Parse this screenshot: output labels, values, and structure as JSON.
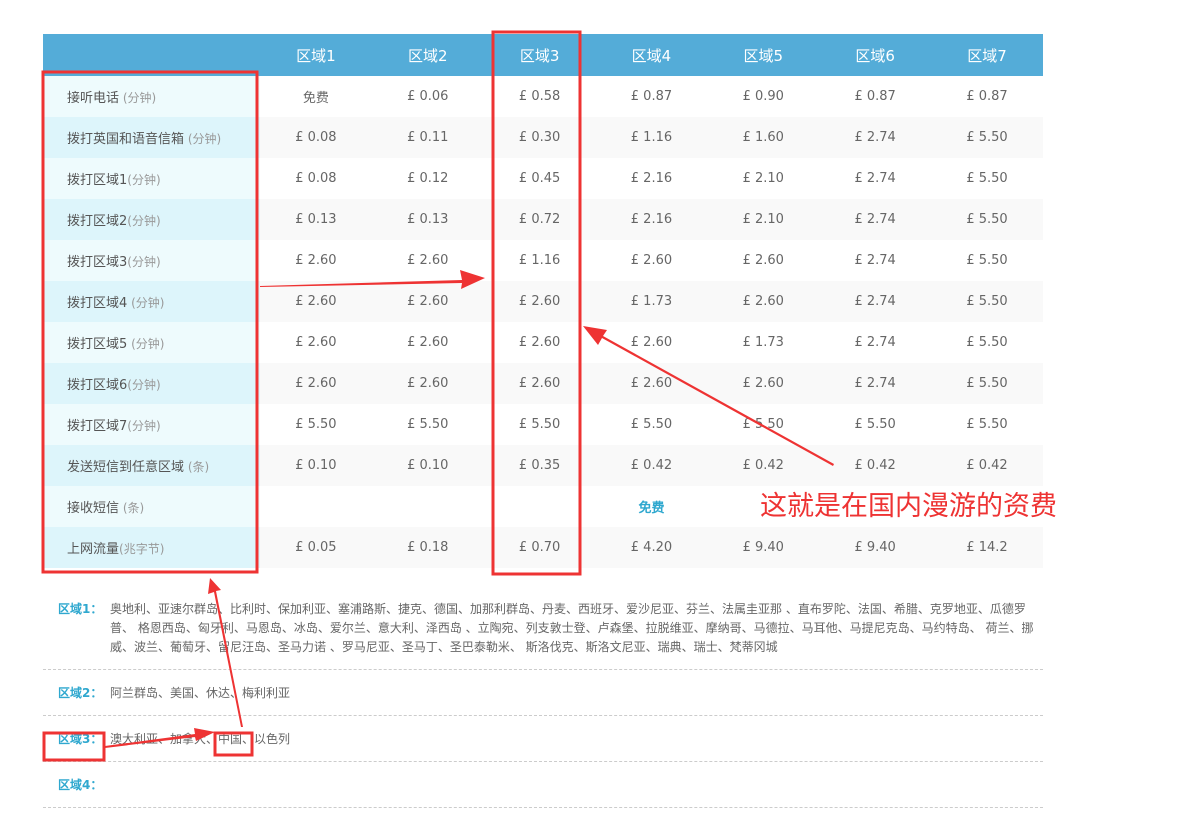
{
  "table": {
    "headers": [
      "区域1",
      "区域2",
      "区域3",
      "区域4",
      "区域5",
      "区域6",
      "区域7"
    ],
    "rows": [
      {
        "label": "接听电话",
        "unit": " (分钟)",
        "values": [
          "免费",
          "£ 0.06",
          "£ 0.58",
          "£ 0.87",
          "£ 0.90",
          "£ 0.87",
          "£ 0.87"
        ]
      },
      {
        "label": "拨打英国和语音信箱",
        "unit": " (分钟)",
        "values": [
          "£ 0.08",
          "£ 0.11",
          "£ 0.30",
          "£ 1.16",
          "£ 1.60",
          "£ 2.74",
          "£ 5.50"
        ]
      },
      {
        "label": "拨打区域1",
        "unit": "(分钟)",
        "values": [
          "£ 0.08",
          "£ 0.12",
          "£ 0.45",
          "£ 2.16",
          "£ 2.10",
          "£ 2.74",
          "£ 5.50"
        ]
      },
      {
        "label": "拨打区域2",
        "unit": "(分钟)",
        "values": [
          "£ 0.13",
          "£ 0.13",
          "£ 0.72",
          "£ 2.16",
          "£ 2.10",
          "£ 2.74",
          "£ 5.50"
        ]
      },
      {
        "label": "拨打区域3",
        "unit": "(分钟)",
        "values": [
          "£ 2.60",
          "£ 2.60",
          "£ 1.16",
          "£ 2.60",
          "£ 2.60",
          "£ 2.74",
          "£ 5.50"
        ]
      },
      {
        "label": "拨打区域4",
        "unit": " (分钟)",
        "values": [
          "£ 2.60",
          "£ 2.60",
          "£ 2.60",
          "£ 1.73",
          "£ 2.60",
          "£ 2.74",
          "£ 5.50"
        ]
      },
      {
        "label": "拨打区域5",
        "unit": " (分钟)",
        "values": [
          "£ 2.60",
          "£ 2.60",
          "£ 2.60",
          "£ 2.60",
          "£ 1.73",
          "£ 2.74",
          "£ 5.50"
        ]
      },
      {
        "label": "拨打区域6",
        "unit": "(分钟)",
        "values": [
          "£ 2.60",
          "£ 2.60",
          "£ 2.60",
          "£ 2.60",
          "£ 2.60",
          "£ 2.74",
          "£ 5.50"
        ]
      },
      {
        "label": "拨打区域7",
        "unit": "(分钟)",
        "values": [
          "£ 5.50",
          "£ 5.50",
          "£ 5.50",
          "£ 5.50",
          "£ 5.50",
          "£ 5.50",
          "£ 5.50"
        ]
      },
      {
        "label": "发送短信到任意区域",
        "unit": " (条)",
        "values": [
          "£ 0.10",
          "£ 0.10",
          "£ 0.35",
          "£ 0.42",
          "£ 0.42",
          "£ 0.42",
          "£ 0.42"
        ]
      },
      {
        "label": "接收短信",
        "unit": " (条)",
        "merged": "免费"
      },
      {
        "label": "上网流量",
        "unit": "(兆字节)",
        "values": [
          "£ 0.05",
          "£ 0.18",
          "£ 0.70",
          "£ 4.20",
          "£ 9.40",
          "£ 9.40",
          "£ 14.2"
        ]
      }
    ]
  },
  "regions": [
    {
      "label": "区域1：",
      "text": "奥地利、亚速尔群岛、比利时、保加利亚、塞浦路斯、捷克、德国、加那利群岛、丹麦、西班牙、爱沙尼亚、芬兰、法属圭亚那 、直布罗陀、法国、希腊、克罗地亚、瓜德罗普、 格恩西岛、匈牙利、马恩岛、冰岛、爱尔兰、意大利、泽西岛 、立陶宛、列支敦士登、卢森堡、拉脱维亚、摩纳哥、马德拉、马耳他、马提尼克岛、马约特岛、 荷兰、挪威、波兰、葡萄牙、留尼汪岛、圣马力诺 、罗马尼亚、圣马丁、圣巴泰勒米、 斯洛伐克、斯洛文尼亚、瑞典、瑞士、梵蒂冈城"
    },
    {
      "label": "区域2：",
      "text": "阿兰群岛、美国、休达、梅利利亚"
    },
    {
      "label": "区域3：",
      "text": "澳大利亚、加拿大、中国、以色列"
    },
    {
      "label": "区域4：",
      "text": ""
    }
  ],
  "annotation": {
    "text": "这就是在国内漫游的资费",
    "color": "#ee3333"
  },
  "colors": {
    "header": "#54acd8",
    "accent": "#2fa8cf"
  }
}
